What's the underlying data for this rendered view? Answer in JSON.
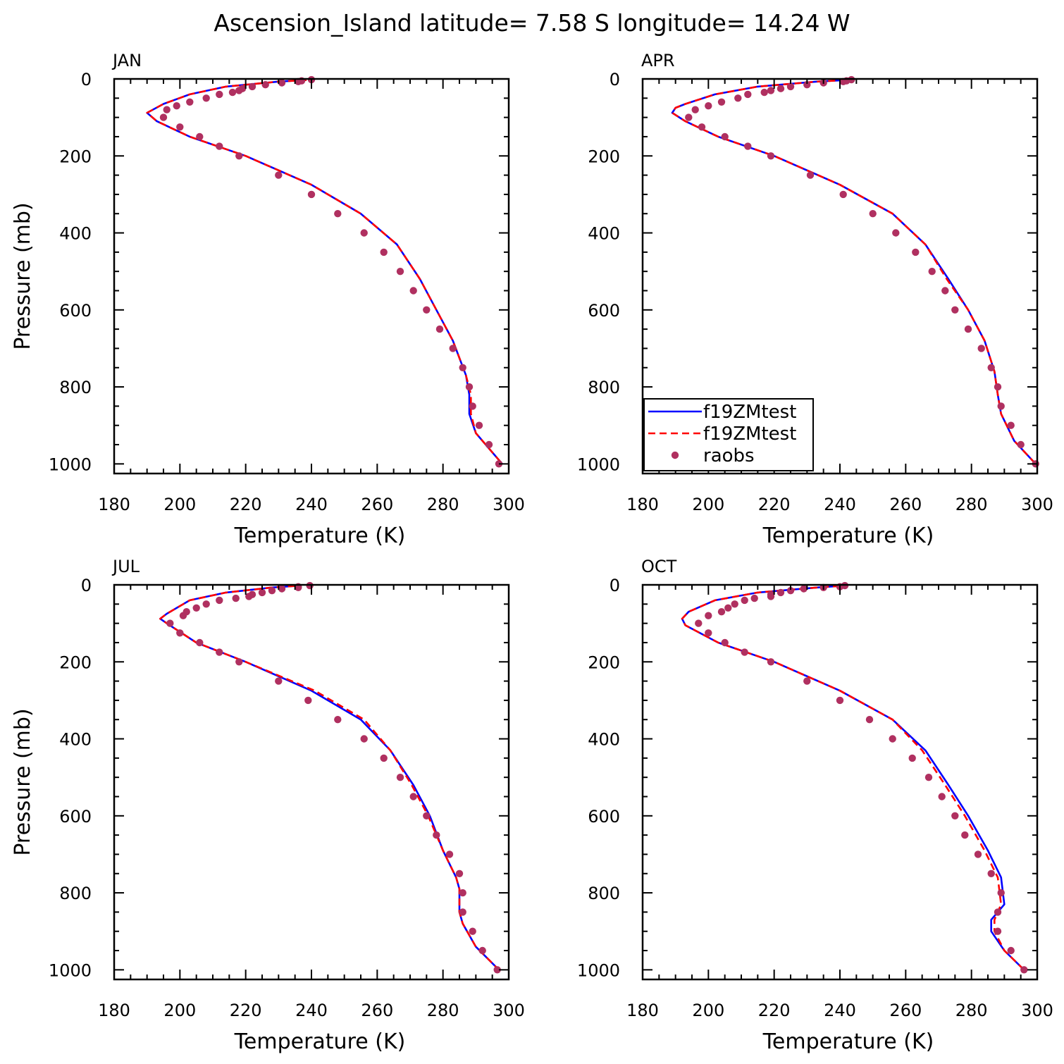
{
  "figure": {
    "title": "Ascension_Island  latitude= 7.58 S longitude= 14.24 W"
  },
  "colors": {
    "model_solid": "#0000ff",
    "model_dashed": "#ff0000",
    "obs": "#b03060",
    "axes": "#000000"
  },
  "chart_data": [
    {
      "type": "line",
      "panel_label": "JAN",
      "xlabel": "Temperature (K)",
      "ylabel": "Pressure (mb)",
      "xlim": [
        180,
        300
      ],
      "ylim": [
        1025,
        0
      ],
      "y_inverted": true,
      "xticks": [
        180,
        200,
        220,
        240,
        260,
        280,
        300
      ],
      "yticks": [
        0,
        200,
        400,
        600,
        800,
        1000
      ],
      "series": [
        {
          "style": "solid",
          "color": "#0000ff",
          "x": [
            238.5,
            230,
            214,
            203,
            195,
            190,
            193,
            203,
            220,
            240,
            255,
            266,
            273,
            278,
            283,
            287,
            288,
            288,
            290,
            294,
            298
          ],
          "y": [
            3,
            7,
            20,
            40,
            65,
            88,
            110,
            150,
            200,
            275,
            350,
            430,
            520,
            600,
            680,
            770,
            820,
            870,
            920,
            960,
            1000
          ]
        },
        {
          "style": "dashed",
          "color": "#ff0000",
          "x": [
            238.5,
            230,
            214,
            203,
            195,
            190,
            193,
            203,
            220,
            240,
            255,
            266,
            273,
            278,
            283,
            287,
            288.5,
            288.5,
            290,
            294,
            298
          ],
          "y": [
            3,
            7,
            20,
            40,
            65,
            88,
            110,
            150,
            200,
            275,
            350,
            430,
            520,
            600,
            680,
            770,
            820,
            870,
            920,
            960,
            1000
          ]
        },
        {
          "name": "raobs",
          "style": "markers",
          "color": "#b03060",
          "x": [
            240,
            237,
            236,
            231,
            226,
            222,
            219,
            218,
            216,
            212,
            208,
            203,
            199,
            196,
            195,
            200,
            206,
            212,
            218,
            230,
            240,
            248,
            256,
            262,
            267,
            271,
            275,
            279,
            283,
            286,
            288,
            289,
            291,
            294,
            297
          ],
          "y": [
            2,
            5,
            7,
            10,
            15,
            20,
            25,
            30,
            35,
            40,
            50,
            60,
            70,
            80,
            100,
            125,
            150,
            175,
            200,
            250,
            300,
            350,
            400,
            450,
            500,
            550,
            600,
            650,
            700,
            750,
            800,
            850,
            900,
            950,
            1000
          ]
        }
      ]
    },
    {
      "type": "line",
      "panel_label": "APR",
      "xlabel": "Temperature (K)",
      "ylabel": "",
      "xlim": [
        180,
        300
      ],
      "ylim": [
        1025,
        0
      ],
      "y_inverted": true,
      "xticks": [
        180,
        200,
        220,
        240,
        260,
        280,
        300
      ],
      "yticks": [
        0,
        200,
        400,
        600,
        800,
        1000
      ],
      "legend": {
        "placement": "lower-left",
        "entries": [
          {
            "label": "f19ZMtest",
            "style": "solid",
            "color": "#0000ff"
          },
          {
            "label": "f19ZMtest",
            "style": "dashed",
            "color": "#ff0000"
          },
          {
            "label": "raobs",
            "style": "markers",
            "color": "#b03060"
          }
        ]
      },
      "series": [
        {
          "name": "f19ZMtest",
          "style": "solid",
          "color": "#0000ff",
          "x": [
            242,
            233,
            215,
            202,
            193,
            190,
            189,
            193,
            203,
            220,
            240,
            256,
            266,
            273,
            279,
            284,
            287,
            288,
            289,
            293,
            299.5
          ],
          "y": [
            3,
            7,
            20,
            40,
            65,
            75,
            88,
            110,
            150,
            200,
            275,
            350,
            430,
            520,
            600,
            680,
            760,
            820,
            870,
            940,
            1000
          ]
        },
        {
          "name": "f19ZMtest",
          "style": "dashed",
          "color": "#ff0000",
          "x": [
            242,
            233,
            215,
            202,
            193,
            190,
            189,
            193,
            203,
            220,
            240,
            256,
            266,
            272.5,
            279,
            284,
            287,
            288,
            289,
            293,
            299.5
          ],
          "y": [
            3,
            7,
            20,
            40,
            65,
            75,
            88,
            110,
            150,
            200,
            275,
            350,
            430,
            520,
            600,
            680,
            760,
            820,
            870,
            940,
            1000
          ]
        },
        {
          "name": "raobs",
          "style": "markers",
          "color": "#b03060",
          "x": [
            243.5,
            242,
            241,
            235,
            230,
            225,
            222,
            219,
            217,
            212,
            209,
            204,
            200,
            196,
            194,
            198,
            205,
            212,
            219,
            231,
            241,
            250,
            257,
            263,
            268,
            272,
            275,
            279,
            283,
            286,
            288,
            289,
            292,
            295,
            299.5
          ],
          "y": [
            2,
            5,
            7,
            10,
            15,
            20,
            25,
            30,
            35,
            40,
            50,
            60,
            70,
            80,
            100,
            125,
            150,
            175,
            200,
            250,
            300,
            350,
            400,
            450,
            500,
            550,
            600,
            650,
            700,
            750,
            800,
            850,
            900,
            950,
            1000
          ]
        }
      ]
    },
    {
      "type": "line",
      "panel_label": "JUL",
      "xlabel": "Temperature (K)",
      "ylabel": "Pressure (mb)",
      "xlim": [
        180,
        300
      ],
      "ylim": [
        1025,
        0
      ],
      "y_inverted": true,
      "xticks": [
        180,
        200,
        220,
        240,
        260,
        280,
        300
      ],
      "yticks": [
        0,
        200,
        400,
        600,
        800,
        1000
      ],
      "series": [
        {
          "style": "solid",
          "color": "#0000ff",
          "x": [
            235,
            228,
            214,
            203,
            196,
            194,
            196,
            205,
            220,
            240,
            255,
            264,
            271,
            276,
            280,
            284,
            285,
            285,
            286,
            290,
            297
          ],
          "y": [
            3,
            7,
            20,
            40,
            75,
            88,
            100,
            150,
            200,
            275,
            350,
            430,
            520,
            600,
            690,
            760,
            790,
            850,
            880,
            940,
            1000
          ]
        },
        {
          "style": "dashed",
          "color": "#ff0000",
          "x": [
            235,
            228,
            214,
            203,
            196,
            194,
            196,
            205,
            220,
            241,
            256,
            264,
            270.5,
            275.5,
            280,
            284,
            285,
            285,
            286,
            290,
            297
          ],
          "y": [
            3,
            7,
            20,
            40,
            75,
            88,
            100,
            150,
            200,
            275,
            350,
            430,
            520,
            600,
            690,
            760,
            790,
            850,
            880,
            940,
            1000
          ]
        },
        {
          "name": "raobs",
          "style": "markers",
          "color": "#b03060",
          "x": [
            239.5,
            236,
            236,
            231,
            228,
            225,
            222,
            221,
            217,
            212,
            208,
            205,
            202,
            201,
            197,
            200,
            206,
            212,
            218,
            230,
            239,
            248,
            256,
            262,
            267,
            271,
            275,
            278,
            282,
            285,
            286,
            286,
            289,
            292,
            296.5
          ],
          "y": [
            2,
            5,
            7,
            10,
            15,
            20,
            25,
            30,
            35,
            40,
            50,
            60,
            70,
            80,
            100,
            125,
            150,
            175,
            200,
            250,
            300,
            350,
            400,
            450,
            500,
            550,
            600,
            650,
            700,
            750,
            800,
            850,
            900,
            950,
            1000
          ]
        }
      ]
    },
    {
      "type": "line",
      "panel_label": "OCT",
      "xlabel": "Temperature (K)",
      "ylabel": "",
      "xlim": [
        180,
        300
      ],
      "ylim": [
        1025,
        0
      ],
      "y_inverted": true,
      "xticks": [
        180,
        200,
        220,
        240,
        260,
        280,
        300
      ],
      "yticks": [
        0,
        200,
        400,
        600,
        800,
        1000
      ],
      "series": [
        {
          "style": "solid",
          "color": "#0000ff",
          "x": [
            240,
            233,
            215,
            202,
            194,
            192,
            193,
            203,
            220,
            240,
            256,
            266,
            273,
            279,
            285,
            289,
            290,
            286,
            286,
            290,
            296
          ],
          "y": [
            3,
            7,
            20,
            40,
            70,
            88,
            105,
            150,
            200,
            275,
            350,
            430,
            520,
            600,
            690,
            760,
            830,
            870,
            900,
            950,
            1000
          ]
        },
        {
          "style": "dashed",
          "color": "#ff0000",
          "x": [
            240,
            233,
            215,
            202,
            194,
            192,
            193,
            203,
            220,
            240,
            256,
            265,
            272,
            278,
            284,
            288,
            289,
            287,
            287,
            290,
            296
          ],
          "y": [
            3,
            7,
            20,
            40,
            70,
            88,
            105,
            150,
            200,
            275,
            350,
            430,
            520,
            600,
            690,
            760,
            830,
            870,
            900,
            950,
            1000
          ]
        },
        {
          "name": "raobs",
          "style": "markers",
          "color": "#b03060",
          "x": [
            241.5,
            240,
            235,
            229,
            225,
            222,
            219,
            219,
            214,
            211,
            208,
            206,
            204,
            200,
            197,
            200,
            205,
            211,
            219,
            230,
            240,
            249,
            256,
            262,
            267,
            271,
            275,
            278,
            282,
            286,
            289,
            288,
            288,
            292,
            296
          ],
          "y": [
            2,
            5,
            7,
            10,
            15,
            20,
            25,
            30,
            35,
            40,
            50,
            60,
            70,
            80,
            100,
            125,
            150,
            175,
            200,
            250,
            300,
            350,
            400,
            450,
            500,
            550,
            600,
            650,
            700,
            750,
            800,
            850,
            900,
            950,
            1000
          ]
        }
      ]
    }
  ]
}
